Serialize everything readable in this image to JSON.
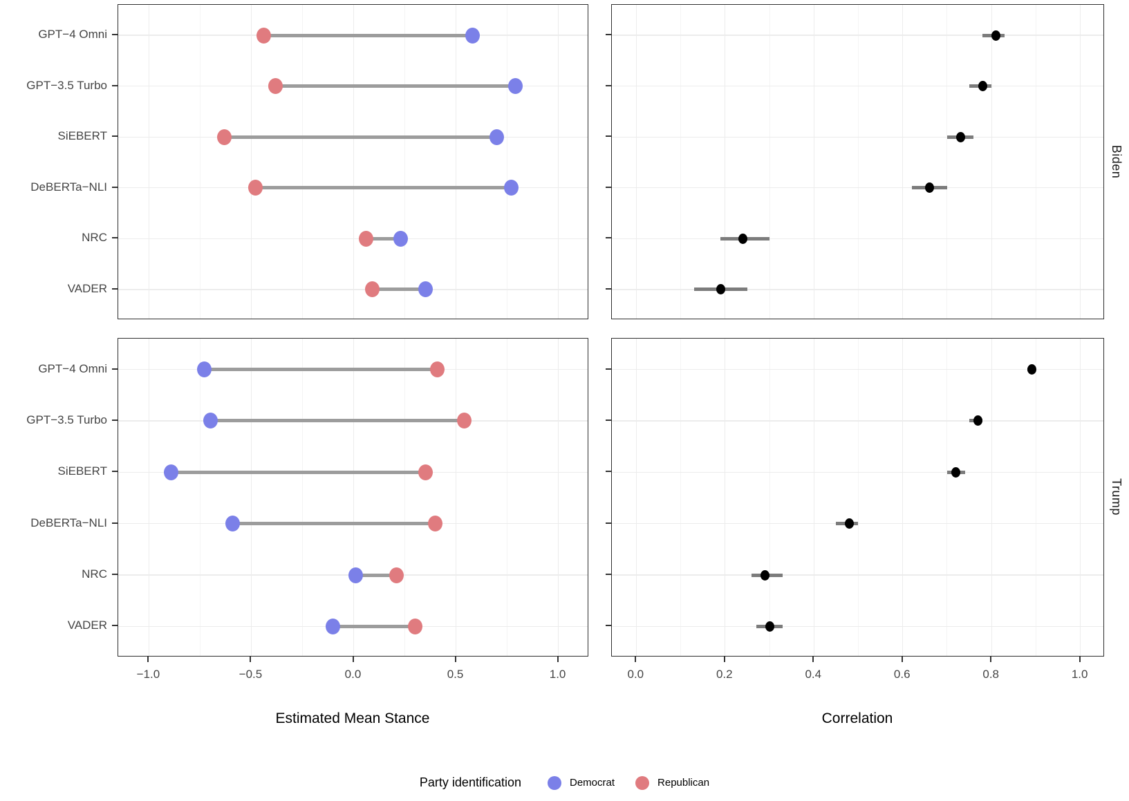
{
  "figure": {
    "facets": [
      "Biden",
      "Trump"
    ],
    "models": [
      "GPT−4 Omni",
      "GPT−3.5 Turbo",
      "SiEBERT",
      "DeBERTa−NLI",
      "NRC",
      "VADER"
    ],
    "axes": {
      "stance": {
        "title": "Estimated Mean Stance",
        "tick_labels": [
          "−1.0",
          "−0.5",
          "0.0",
          "0.5",
          "1.0"
        ],
        "ticks": [
          -1.0,
          -0.5,
          0.0,
          0.5,
          1.0
        ],
        "minor_ticks": [
          -0.75,
          -0.25,
          0.25,
          0.75
        ],
        "domain": [
          -1.15,
          1.15
        ]
      },
      "correlation": {
        "title": "Correlation",
        "tick_labels": [
          "0.0",
          "0.2",
          "0.4",
          "0.6",
          "0.8",
          "1.0"
        ],
        "ticks": [
          0.0,
          0.2,
          0.4,
          0.6,
          0.8,
          1.0
        ],
        "minor_ticks": [
          0.1,
          0.3,
          0.5,
          0.7,
          0.9
        ],
        "domain": [
          -0.055,
          1.055
        ]
      }
    },
    "legend": {
      "title": "Party identification",
      "items": [
        {
          "label": "Democrat",
          "color": "#7B80E8"
        },
        {
          "label": "Republican",
          "color": "#E07B7F"
        }
      ]
    },
    "colors": {
      "democrat": "#7B80E8",
      "republican": "#E07B7F",
      "segment": "#9c9c9c",
      "errorbar": "#7c7c7c",
      "estimate_dot": "#000000"
    }
  },
  "chart_data": [
    {
      "type": "scatter",
      "subtype": "dumbbell",
      "facet": "Biden",
      "xlabel": "Estimated Mean Stance",
      "categories": [
        "GPT−4 Omni",
        "GPT−3.5 Turbo",
        "SiEBERT",
        "DeBERTa−NLI",
        "NRC",
        "VADER"
      ],
      "series": [
        {
          "name": "Democrat",
          "values": [
            0.58,
            0.79,
            0.7,
            0.77,
            0.23,
            0.35
          ]
        },
        {
          "name": "Republican",
          "values": [
            -0.44,
            -0.38,
            -0.63,
            -0.48,
            0.06,
            0.09
          ]
        }
      ],
      "xlim": [
        -1.15,
        1.15
      ]
    },
    {
      "type": "scatter",
      "subtype": "pointrange",
      "facet": "Biden",
      "xlabel": "Correlation",
      "categories": [
        "GPT−4 Omni",
        "GPT−3.5 Turbo",
        "SiEBERT",
        "DeBERTa−NLI",
        "NRC",
        "VADER"
      ],
      "estimates": [
        0.81,
        0.78,
        0.73,
        0.66,
        0.24,
        0.19
      ],
      "lower": [
        0.78,
        0.75,
        0.7,
        0.62,
        0.19,
        0.13
      ],
      "upper": [
        0.83,
        0.8,
        0.76,
        0.7,
        0.3,
        0.25
      ],
      "xlim": [
        -0.055,
        1.055
      ]
    },
    {
      "type": "scatter",
      "subtype": "dumbbell",
      "facet": "Trump",
      "xlabel": "Estimated Mean Stance",
      "categories": [
        "GPT−4 Omni",
        "GPT−3.5 Turbo",
        "SiEBERT",
        "DeBERTa−NLI",
        "NRC",
        "VADER"
      ],
      "series": [
        {
          "name": "Democrat",
          "values": [
            -0.73,
            -0.7,
            -0.89,
            -0.59,
            0.01,
            -0.1
          ]
        },
        {
          "name": "Republican",
          "values": [
            0.41,
            0.54,
            0.35,
            0.4,
            0.21,
            0.3
          ]
        }
      ],
      "xlim": [
        -1.15,
        1.15
      ]
    },
    {
      "type": "scatter",
      "subtype": "pointrange",
      "facet": "Trump",
      "xlabel": "Correlation",
      "categories": [
        "GPT−4 Omni",
        "GPT−3.5 Turbo",
        "SiEBERT",
        "DeBERTa−NLI",
        "NRC",
        "VADER"
      ],
      "estimates": [
        0.89,
        0.77,
        0.72,
        0.48,
        0.29,
        0.3
      ],
      "lower": [
        0.88,
        0.75,
        0.7,
        0.45,
        0.26,
        0.27
      ],
      "upper": [
        0.9,
        0.78,
        0.74,
        0.5,
        0.33,
        0.33
      ],
      "xlim": [
        -0.055,
        1.055
      ]
    }
  ]
}
